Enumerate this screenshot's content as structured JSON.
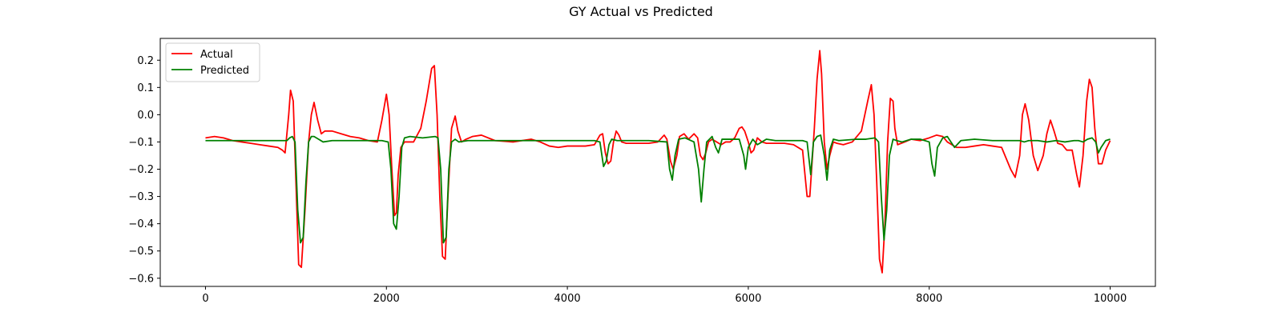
{
  "chart_data": {
    "type": "line",
    "title": "GY Actual vs Predicted",
    "xlabel": "",
    "ylabel": "",
    "xlim": [
      -500,
      10500
    ],
    "ylim": [
      -0.63,
      0.28
    ],
    "xticks": [
      0,
      2000,
      4000,
      6000,
      8000,
      10000
    ],
    "yticks": [
      -0.6,
      -0.5,
      -0.4,
      -0.3,
      -0.2,
      -0.1,
      0.0,
      0.1,
      0.2
    ],
    "ytick_labels": [
      "−0.6",
      "−0.5",
      "−0.4",
      "−0.3",
      "−0.2",
      "−0.1",
      "0.0",
      "0.1",
      "0.2"
    ],
    "xtick_labels": [
      "0",
      "2000",
      "4000",
      "6000",
      "8000",
      "10000"
    ],
    "grid": false,
    "legend_position": "upper-left",
    "series": [
      {
        "name": "Actual",
        "color": "#ff0000",
        "x": [
          0,
          100,
          200,
          300,
          400,
          500,
          600,
          700,
          800,
          850,
          880,
          920,
          940,
          970,
          1000,
          1030,
          1060,
          1100,
          1140,
          1170,
          1200,
          1240,
          1280,
          1320,
          1400,
          1500,
          1600,
          1700,
          1800,
          1900,
          1950,
          2000,
          2030,
          2060,
          2090,
          2110,
          2130,
          2160,
          2200,
          2250,
          2300,
          2380,
          2440,
          2500,
          2530,
          2560,
          2590,
          2620,
          2650,
          2680,
          2720,
          2760,
          2790,
          2830,
          2880,
          2950,
          3050,
          3200,
          3400,
          3600,
          3700,
          3800,
          3900,
          4000,
          4100,
          4200,
          4300,
          4360,
          4390,
          4420,
          4450,
          4480,
          4510,
          4540,
          4570,
          4600,
          4650,
          4700,
          4800,
          4900,
          5000,
          5070,
          5100,
          5140,
          5170,
          5210,
          5240,
          5290,
          5340,
          5400,
          5440,
          5470,
          5500,
          5530,
          5560,
          5600,
          5650,
          5700,
          5750,
          5800,
          5850,
          5900,
          5930,
          5960,
          6000,
          6030,
          6060,
          6100,
          6150,
          6200,
          6300,
          6400,
          6500,
          6600,
          6650,
          6680,
          6700,
          6730,
          6760,
          6790,
          6810,
          6840,
          6870,
          6900,
          6940,
          6980,
          7050,
          7150,
          7250,
          7320,
          7360,
          7390,
          7420,
          7450,
          7480,
          7510,
          7540,
          7570,
          7600,
          7620,
          7650,
          7690,
          7730,
          7800,
          7900,
          8000,
          8080,
          8150,
          8200,
          8250,
          8300,
          8400,
          8500,
          8600,
          8700,
          8800,
          8900,
          8950,
          9000,
          9030,
          9060,
          9100,
          9150,
          9200,
          9260,
          9300,
          9340,
          9380,
          9420,
          9470,
          9520,
          9580,
          9630,
          9660,
          9700,
          9740,
          9770,
          9800,
          9830,
          9870,
          9910,
          9950,
          10000
        ],
        "y": [
          -0.085,
          -0.08,
          -0.085,
          -0.095,
          -0.1,
          -0.105,
          -0.11,
          -0.115,
          -0.12,
          -0.13,
          -0.14,
          0.0,
          0.09,
          0.05,
          -0.25,
          -0.55,
          -0.56,
          -0.35,
          -0.1,
          0.0,
          0.045,
          -0.02,
          -0.07,
          -0.06,
          -0.06,
          -0.07,
          -0.08,
          -0.085,
          -0.095,
          -0.1,
          -0.02,
          0.075,
          0.0,
          -0.2,
          -0.37,
          -0.36,
          -0.22,
          -0.12,
          -0.1,
          -0.1,
          -0.1,
          -0.05,
          0.05,
          0.17,
          0.18,
          0.0,
          -0.3,
          -0.52,
          -0.53,
          -0.3,
          -0.05,
          -0.005,
          -0.06,
          -0.1,
          -0.09,
          -0.08,
          -0.075,
          -0.095,
          -0.1,
          -0.09,
          -0.1,
          -0.115,
          -0.12,
          -0.115,
          -0.115,
          -0.115,
          -0.11,
          -0.075,
          -0.07,
          -0.14,
          -0.18,
          -0.17,
          -0.1,
          -0.06,
          -0.075,
          -0.1,
          -0.105,
          -0.105,
          -0.105,
          -0.105,
          -0.1,
          -0.075,
          -0.09,
          -0.17,
          -0.2,
          -0.15,
          -0.08,
          -0.07,
          -0.09,
          -0.07,
          -0.085,
          -0.15,
          -0.165,
          -0.14,
          -0.1,
          -0.09,
          -0.1,
          -0.11,
          -0.1,
          -0.1,
          -0.085,
          -0.05,
          -0.045,
          -0.06,
          -0.1,
          -0.14,
          -0.13,
          -0.085,
          -0.1,
          -0.105,
          -0.105,
          -0.105,
          -0.11,
          -0.13,
          -0.3,
          -0.3,
          -0.2,
          -0.05,
          0.13,
          0.235,
          0.15,
          -0.1,
          -0.2,
          -0.15,
          -0.1,
          -0.105,
          -0.11,
          -0.1,
          -0.06,
          0.05,
          0.11,
          0.0,
          -0.25,
          -0.53,
          -0.58,
          -0.4,
          -0.1,
          0.06,
          0.05,
          -0.05,
          -0.11,
          -0.105,
          -0.1,
          -0.09,
          -0.095,
          -0.085,
          -0.075,
          -0.08,
          -0.1,
          -0.11,
          -0.12,
          -0.12,
          -0.115,
          -0.11,
          -0.115,
          -0.12,
          -0.2,
          -0.23,
          -0.15,
          0.0,
          0.04,
          -0.02,
          -0.15,
          -0.205,
          -0.15,
          -0.07,
          -0.02,
          -0.06,
          -0.105,
          -0.11,
          -0.13,
          -0.13,
          -0.22,
          -0.265,
          -0.15,
          0.05,
          0.13,
          0.1,
          -0.05,
          -0.18,
          -0.18,
          -0.13,
          -0.095
        ]
      },
      {
        "name": "Predicted",
        "color": "#008000",
        "x": [
          0,
          200,
          400,
          600,
          800,
          900,
          930,
          960,
          990,
          1020,
          1050,
          1080,
          1110,
          1140,
          1170,
          1200,
          1250,
          1300,
          1400,
          1600,
          1800,
          1950,
          2020,
          2050,
          2080,
          2110,
          2140,
          2170,
          2200,
          2260,
          2400,
          2540,
          2570,
          2600,
          2630,
          2660,
          2690,
          2720,
          2760,
          2800,
          2900,
          3100,
          3400,
          3700,
          4000,
          4200,
          4300,
          4360,
          4400,
          4430,
          4460,
          4490,
          4550,
          4700,
          4900,
          5100,
          5130,
          5160,
          5190,
          5230,
          5300,
          5400,
          5450,
          5480,
          5510,
          5540,
          5600,
          5640,
          5670,
          5710,
          5800,
          5900,
          5950,
          5970,
          6000,
          6050,
          6100,
          6150,
          6200,
          6300,
          6500,
          6600,
          6650,
          6690,
          6720,
          6760,
          6800,
          6840,
          6870,
          6900,
          6940,
          7000,
          7200,
          7300,
          7400,
          7440,
          7470,
          7500,
          7530,
          7560,
          7600,
          7640,
          7700,
          7800,
          7900,
          8000,
          8030,
          8060,
          8090,
          8150,
          8200,
          8240,
          8280,
          8350,
          8500,
          8700,
          8900,
          9000,
          9050,
          9100,
          9200,
          9300,
          9400,
          9500,
          9600,
          9650,
          9700,
          9750,
          9800,
          9840,
          9870,
          9900,
          9950,
          10000
        ],
        "y": [
          -0.095,
          -0.095,
          -0.095,
          -0.095,
          -0.095,
          -0.095,
          -0.085,
          -0.08,
          -0.1,
          -0.35,
          -0.47,
          -0.45,
          -0.25,
          -0.1,
          -0.08,
          -0.08,
          -0.09,
          -0.1,
          -0.095,
          -0.095,
          -0.095,
          -0.095,
          -0.1,
          -0.2,
          -0.4,
          -0.42,
          -0.3,
          -0.12,
          -0.085,
          -0.08,
          -0.085,
          -0.08,
          -0.085,
          -0.2,
          -0.47,
          -0.45,
          -0.2,
          -0.1,
          -0.09,
          -0.1,
          -0.095,
          -0.095,
          -0.095,
          -0.095,
          -0.095,
          -0.095,
          -0.095,
          -0.1,
          -0.19,
          -0.17,
          -0.11,
          -0.09,
          -0.095,
          -0.095,
          -0.095,
          -0.1,
          -0.2,
          -0.24,
          -0.15,
          -0.09,
          -0.085,
          -0.1,
          -0.2,
          -0.32,
          -0.2,
          -0.1,
          -0.08,
          -0.12,
          -0.14,
          -0.09,
          -0.09,
          -0.09,
          -0.15,
          -0.2,
          -0.12,
          -0.09,
          -0.11,
          -0.1,
          -0.09,
          -0.095,
          -0.095,
          -0.095,
          -0.1,
          -0.22,
          -0.1,
          -0.08,
          -0.075,
          -0.15,
          -0.24,
          -0.13,
          -0.09,
          -0.095,
          -0.09,
          -0.09,
          -0.085,
          -0.1,
          -0.3,
          -0.46,
          -0.35,
          -0.15,
          -0.09,
          -0.095,
          -0.1,
          -0.09,
          -0.09,
          -0.1,
          -0.18,
          -0.225,
          -0.12,
          -0.085,
          -0.08,
          -0.1,
          -0.12,
          -0.095,
          -0.09,
          -0.095,
          -0.095,
          -0.095,
          -0.1,
          -0.095,
          -0.095,
          -0.1,
          -0.095,
          -0.1,
          -0.095,
          -0.095,
          -0.1,
          -0.09,
          -0.085,
          -0.1,
          -0.14,
          -0.12,
          -0.095,
          -0.09
        ]
      }
    ]
  }
}
